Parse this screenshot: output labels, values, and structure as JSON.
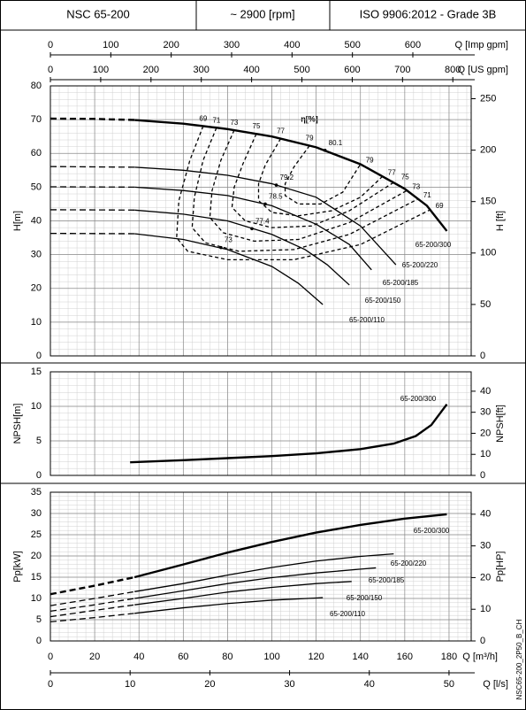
{
  "header": {
    "model": "NSC 65-200",
    "speed": "~ 2900 [rpm]",
    "standard": "ISO 9906:2012 - Grade 3B"
  },
  "drawing_code": "NSC65-200_2P50_B_CH",
  "chart_data": [
    {
      "type": "line",
      "ylabel": "H[m]",
      "y2label": "H [ft]",
      "annotation": "η[%]",
      "xlim": [
        0,
        190
      ],
      "xticks": [
        0,
        20,
        40,
        60,
        80,
        100,
        120,
        140,
        160,
        180
      ],
      "ylim": [
        0,
        80
      ],
      "yticks": [
        0,
        10,
        20,
        30,
        40,
        50,
        60,
        70,
        80
      ],
      "y2lim": [
        0,
        262.47
      ],
      "y2ticks": [
        0,
        50,
        100,
        150,
        200,
        250
      ],
      "grid": true,
      "minor_grid": {
        "x": 4,
        "y": 2
      },
      "top_axes": [
        {
          "label": "Q [Imp gpm]",
          "lim": [
            0,
            696.6
          ],
          "ticks": [
            0,
            100,
            200,
            300,
            400,
            500,
            600
          ]
        },
        {
          "label": "Q [US gpm]",
          "lim": [
            0,
            836.5
          ],
          "ticks": [
            0,
            100,
            200,
            300,
            400,
            500,
            600,
            700,
            800
          ]
        }
      ],
      "series": [
        {
          "name": "65-200/300",
          "color": "#000000",
          "line_width": 2.4,
          "dashed_x": [
            0,
            20,
            38
          ],
          "dashed_values": [
            70.3,
            70.2,
            69.9
          ],
          "x": [
            38,
            60,
            80,
            100,
            120,
            140,
            160,
            170,
            179
          ],
          "values": [
            69.9,
            68.8,
            67.2,
            65,
            61.8,
            56.8,
            49.5,
            44.5,
            37
          ],
          "bep": {
            "x": 124,
            "y": 60.9,
            "label": "80.1"
          }
        },
        {
          "name": "65-200/220",
          "color": "#000000",
          "line_width": 1.3,
          "dashed_x": [
            0,
            20,
            38
          ],
          "dashed_values": [
            56.1,
            56,
            55.9
          ],
          "x": [
            38,
            60,
            80,
            100,
            120,
            140,
            156
          ],
          "values": [
            55.9,
            55,
            53.5,
            51,
            47,
            38.5,
            27
          ],
          "bep": {
            "x": 102,
            "y": 50.6,
            "label": "79.2"
          }
        },
        {
          "name": "65-200/185",
          "color": "#000000",
          "line_width": 1.3,
          "dashed_x": [
            0,
            20,
            38
          ],
          "dashed_values": [
            50.1,
            50.05,
            50
          ],
          "x": [
            38,
            60,
            80,
            100,
            120,
            135,
            145
          ],
          "values": [
            50,
            49,
            47.5,
            44.5,
            39,
            33,
            25.5
          ],
          "bep": {
            "x": 97,
            "y": 45,
            "label": "78.5"
          }
        },
        {
          "name": "65-200/150",
          "color": "#000000",
          "line_width": 1.3,
          "dashed_x": [
            0,
            20,
            38
          ],
          "dashed_values": [
            43.3,
            43.25,
            43.2
          ],
          "x": [
            38,
            60,
            80,
            100,
            115,
            125,
            135
          ],
          "values": [
            43.2,
            42,
            40,
            36,
            31.5,
            27,
            21
          ],
          "bep": {
            "x": 91,
            "y": 37.7,
            "label": "77.4"
          }
        },
        {
          "name": "65-200/110",
          "color": "#000000",
          "line_width": 1.3,
          "dashed_x": [
            0,
            20,
            38
          ],
          "dashed_values": [
            36.3,
            36.25,
            36.2
          ],
          "x": [
            38,
            60,
            80,
            100,
            112,
            123
          ],
          "values": [
            36.2,
            34.5,
            31.5,
            26.5,
            21.5,
            15.2
          ],
          "bep": {
            "x": 77,
            "y": 32.1,
            "label": "73"
          }
        }
      ],
      "efficiency_curves": [
        {
          "label": "69",
          "x": [
            69,
            63,
            58,
            57,
            62,
            80,
            110,
            140,
            171.5
          ],
          "values": [
            68.1,
            58,
            46,
            35,
            31,
            28.5,
            28.5,
            33,
            43.3
          ]
        },
        {
          "label": "71",
          "x": [
            75,
            69,
            65,
            64,
            70,
            85,
            110,
            135,
            166
          ],
          "values": [
            67.6,
            58,
            47,
            38,
            33.5,
            31,
            31.5,
            36,
            46.5
          ]
        },
        {
          "label": "73",
          "x": [
            83,
            77,
            73,
            72,
            78,
            92,
            112,
            135,
            161
          ],
          "values": [
            66.9,
            58,
            49,
            41,
            36.5,
            34,
            34.5,
            39.5,
            49
          ]
        },
        {
          "label": "75",
          "x": [
            93,
            87,
            83,
            82,
            88,
            100,
            118,
            135,
            156
          ],
          "values": [
            65.8,
            57,
            50,
            44,
            40,
            38,
            38.5,
            43,
            51.8
          ]
        },
        {
          "label": "77",
          "x": [
            104,
            97,
            94,
            94,
            100,
            112,
            127,
            140,
            150
          ],
          "values": [
            64.4,
            56.5,
            51,
            46,
            42.5,
            41.5,
            43,
            47,
            53.2
          ]
        },
        {
          "label": "79",
          "x": [
            117,
            110,
            106,
            106,
            112,
            122,
            132,
            140
          ],
          "values": [
            62.3,
            56,
            51,
            47.5,
            45,
            45,
            48.5,
            56.8
          ]
        }
      ]
    },
    {
      "type": "line",
      "ylabel": "NPSH[m]",
      "y2label": "NPSH[ft]",
      "xlim": [
        0,
        190
      ],
      "xticks": [
        0,
        20,
        40,
        60,
        80,
        100,
        120,
        140,
        160,
        180
      ],
      "ylim": [
        0,
        15
      ],
      "yticks": [
        0,
        5,
        10,
        15
      ],
      "y2lim": [
        0,
        49.21
      ],
      "y2ticks": [
        0,
        10,
        20,
        30,
        40
      ],
      "grid": true,
      "minor_grid": {
        "x": 4,
        "y": 1
      },
      "series": [
        {
          "name": "65-200/300",
          "color": "#000000",
          "line_width": 2.4,
          "x": [
            36,
            60,
            80,
            100,
            120,
            140,
            155,
            165,
            172,
            179
          ],
          "values": [
            1.9,
            2.2,
            2.5,
            2.8,
            3.2,
            3.8,
            4.6,
            5.7,
            7.3,
            10.3
          ]
        }
      ]
    },
    {
      "type": "line",
      "ylabel": "Pp[kW]",
      "y2label": "Pp[HP]",
      "xlabel": "Q [m³/h]",
      "xlim": [
        0,
        190
      ],
      "xticks": [
        0,
        20,
        40,
        60,
        80,
        100,
        120,
        140,
        160,
        180
      ],
      "ylim": [
        0,
        35
      ],
      "yticks": [
        0,
        5,
        10,
        15,
        20,
        25,
        30,
        35
      ],
      "y2lim": [
        0,
        46.94
      ],
      "y2ticks": [
        0,
        10,
        20,
        30,
        40
      ],
      "grid": true,
      "minor_grid": {
        "x": 4,
        "y": 1
      },
      "bottom_axes": [
        {
          "label": "Q [l/s]",
          "lim": [
            0,
            52.78
          ],
          "ticks": [
            0,
            10,
            20,
            30,
            40,
            50
          ]
        }
      ],
      "series": [
        {
          "name": "65-200/300",
          "color": "#000000",
          "line_width": 2.4,
          "dashed_x": [
            0,
            20,
            38
          ],
          "dashed_values": [
            11,
            13,
            15
          ],
          "x": [
            38,
            60,
            80,
            100,
            120,
            140,
            160,
            179
          ],
          "values": [
            15,
            18,
            20.8,
            23.3,
            25.5,
            27.3,
            28.8,
            29.8
          ]
        },
        {
          "name": "65-200/220",
          "color": "#000000",
          "line_width": 1.3,
          "dashed_x": [
            0,
            20,
            38
          ],
          "dashed_values": [
            8.3,
            10,
            11.6
          ],
          "x": [
            38,
            60,
            80,
            100,
            120,
            140,
            155
          ],
          "values": [
            11.6,
            13.5,
            15.5,
            17.3,
            18.8,
            19.9,
            20.5
          ]
        },
        {
          "name": "65-200/185",
          "color": "#000000",
          "line_width": 1.3,
          "dashed_x": [
            0,
            20,
            38
          ],
          "dashed_values": [
            7,
            8.5,
            10
          ],
          "x": [
            38,
            60,
            80,
            100,
            120,
            140,
            147
          ],
          "values": [
            10,
            11.8,
            13.5,
            14.9,
            16,
            16.9,
            17.2
          ]
        },
        {
          "name": "65-200/150",
          "color": "#000000",
          "line_width": 1.3,
          "dashed_x": [
            0,
            20,
            38
          ],
          "dashed_values": [
            5.7,
            7.2,
            8.5
          ],
          "x": [
            38,
            60,
            80,
            100,
            120,
            136
          ],
          "values": [
            8.5,
            10,
            11.5,
            12.6,
            13.5,
            14
          ]
        },
        {
          "name": "65-200/110",
          "color": "#000000",
          "line_width": 1.3,
          "dashed_x": [
            0,
            20,
            38
          ],
          "dashed_values": [
            4.5,
            5.5,
            6.5
          ],
          "x": [
            38,
            60,
            80,
            100,
            120,
            123
          ],
          "values": [
            6.5,
            7.8,
            8.8,
            9.6,
            10.1,
            10.2
          ]
        }
      ]
    }
  ]
}
